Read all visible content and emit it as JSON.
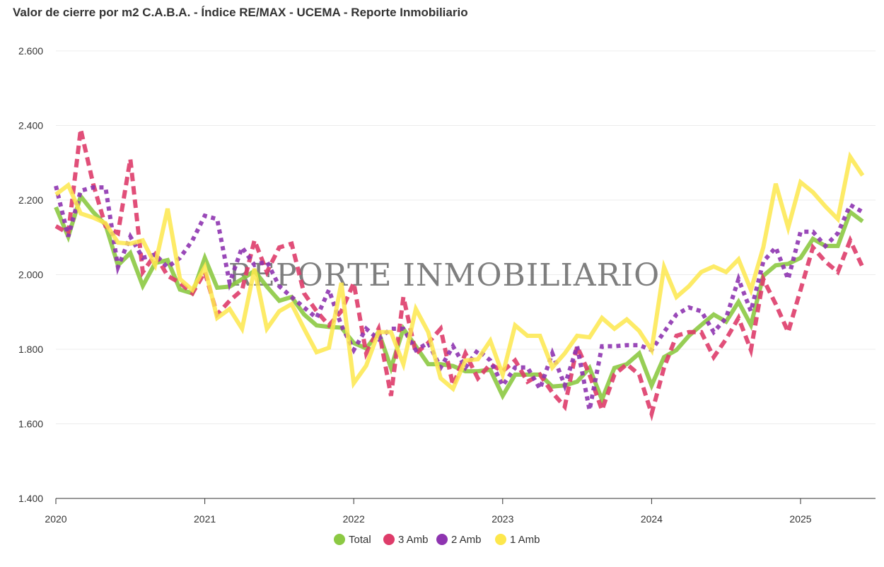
{
  "chart_data": {
    "type": "line",
    "title": "Valor de cierre por m2 C.A.B.A. - Índice RE/MAX - UCEMA - Reporte Inmobiliario",
    "watermark": "REPORTE INMOBILIARIO",
    "x_start": "2020-01",
    "x_frequency": "monthly",
    "x_ticks": [
      "2020",
      "2021",
      "2022",
      "2023",
      "2024",
      "2025"
    ],
    "y_ticks": [
      "1.400",
      "1.600",
      "1.800",
      "2.000",
      "2.200",
      "2.400",
      "2.600"
    ],
    "ylim": [
      1400,
      2600
    ],
    "grid": true,
    "legend_position": "bottom",
    "series": [
      {
        "name": "Total",
        "color": "#8cc943",
        "style": "solid",
        "values": [
          2181,
          2102,
          2210,
          2168,
          2134,
          2025,
          2058,
          1970,
          2031,
          2039,
          1960,
          1950,
          2045,
          1965,
          1968,
          1988,
          2010,
          1968,
          1930,
          1940,
          1893,
          1864,
          1860,
          1858,
          1817,
          1802,
          1846,
          1750,
          1855,
          1808,
          1760,
          1760,
          1755,
          1741,
          1741,
          1745,
          1675,
          1732,
          1732,
          1732,
          1700,
          1703,
          1713,
          1750,
          1665,
          1750,
          1760,
          1789,
          1703,
          1779,
          1798,
          1836,
          1865,
          1893,
          1874,
          1927,
          1865,
          1997,
          2025,
          2029,
          2045,
          2096,
          2077,
          2077,
          2168,
          2143
        ]
      },
      {
        "name": "3 Amb",
        "color": "#de3c6a",
        "style": "dashed",
        "values": [
          2130,
          2111,
          2390,
          2244,
          2130,
          2111,
          2310,
          2007,
          2054,
          1997,
          1978,
          1950,
          2007,
          1893,
          1930,
          1959,
          2092,
          2007,
          2073,
          2083,
          1950,
          1902,
          1864,
          1902,
          1978,
          1789,
          1855,
          1675,
          1940,
          1789,
          1817,
          1855,
          1703,
          1789,
          1722,
          1760,
          1741,
          1770,
          1713,
          1732,
          1684,
          1646,
          1808,
          1732,
          1637,
          1732,
          1760,
          1732,
          1627,
          1751,
          1836,
          1846,
          1846,
          1779,
          1827,
          1884,
          1798,
          1988,
          1921,
          1846,
          1959,
          2073,
          2035,
          2007,
          2092,
          2020
        ]
      },
      {
        "name": "2 Amb",
        "color": "#8e34b0",
        "style": "dotted",
        "values": [
          2238,
          2102,
          2225,
          2234,
          2234,
          2020,
          2102,
          2045,
          2054,
          2020,
          2045,
          2092,
          2158,
          2149,
          1978,
          2073,
          2026,
          2035,
          1969,
          1940,
          1912,
          1884,
          1959,
          1864,
          1798,
          1855,
          1827,
          1855,
          1855,
          1798,
          1817,
          1751,
          1808,
          1751,
          1798,
          1770,
          1703,
          1751,
          1751,
          1694,
          1789,
          1703,
          1808,
          1637,
          1808,
          1808,
          1811,
          1811,
          1798,
          1846,
          1893,
          1912,
          1902,
          1846,
          1884,
          1988,
          1902,
          2035,
          2073,
          1988,
          2115,
          2115,
          2077,
          2111,
          2187,
          2168
        ]
      },
      {
        "name": "1 Amb",
        "color": "#fde74c",
        "style": "solid",
        "values": [
          2215,
          2240,
          2164,
          2153,
          2138,
          2086,
          2083,
          2092,
          2026,
          2177,
          1988,
          1959,
          2020,
          1884,
          1908,
          1855,
          2016,
          1855,
          1902,
          1921,
          1855,
          1792,
          1804,
          1978,
          1709,
          1756,
          1846,
          1846,
          1760,
          1908,
          1846,
          1722,
          1694,
          1770,
          1773,
          1823,
          1732,
          1864,
          1836,
          1836,
          1751,
          1789,
          1836,
          1832,
          1884,
          1855,
          1880,
          1849,
          1798,
          2020,
          1940,
          1969,
          2007,
          2022,
          2007,
          2041,
          1959,
          2073,
          2244,
          2126,
          2248,
          2221,
          2183,
          2149,
          2316,
          2266
        ]
      }
    ]
  }
}
